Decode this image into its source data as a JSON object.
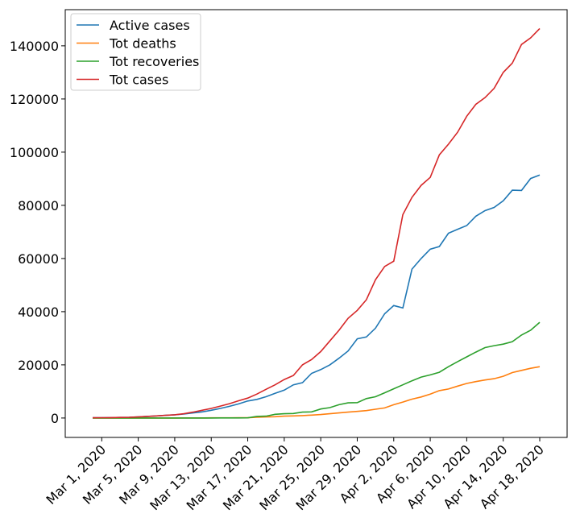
{
  "chart_data": {
    "type": "line",
    "x": [
      "2020-02-29",
      "2020-03-01",
      "2020-03-02",
      "2020-03-03",
      "2020-03-04",
      "2020-03-05",
      "2020-03-06",
      "2020-03-07",
      "2020-03-08",
      "2020-03-09",
      "2020-03-10",
      "2020-03-11",
      "2020-03-12",
      "2020-03-13",
      "2020-03-14",
      "2020-03-15",
      "2020-03-16",
      "2020-03-17",
      "2020-03-18",
      "2020-03-19",
      "2020-03-20",
      "2020-03-21",
      "2020-03-22",
      "2020-03-23",
      "2020-03-24",
      "2020-03-25",
      "2020-03-26",
      "2020-03-27",
      "2020-03-28",
      "2020-03-29",
      "2020-03-30",
      "2020-03-31",
      "2020-04-01",
      "2020-04-02",
      "2020-04-03",
      "2020-04-04",
      "2020-04-05",
      "2020-04-06",
      "2020-04-07",
      "2020-04-08",
      "2020-04-09",
      "2020-04-10",
      "2020-04-11",
      "2020-04-12",
      "2020-04-13",
      "2020-04-14",
      "2020-04-15",
      "2020-04-16",
      "2020-04-17",
      "2020-04-18"
    ],
    "series": [
      {
        "name": "Active cases",
        "color": "#1f77b4",
        "values": [
          80,
          130,
          160,
          200,
          260,
          400,
          600,
          800,
          1000,
          1200,
          1500,
          1900,
          2300,
          2900,
          3600,
          4400,
          5300,
          6400,
          7000,
          8000,
          9300,
          10500,
          12500,
          13300,
          16800,
          18200,
          20000,
          22500,
          25200,
          29800,
          30500,
          33800,
          39200,
          42300,
          41400,
          56000,
          60000,
          63500,
          64500,
          69500,
          71000,
          72400,
          75900,
          78000,
          79200,
          81700,
          85700,
          85600,
          90100,
          91400
        ]
      },
      {
        "name": "Tot deaths",
        "color": "#ff7f0e",
        "values": [
          0,
          0,
          0,
          0,
          0,
          0,
          0,
          0,
          0,
          10,
          20,
          30,
          40,
          50,
          60,
          70,
          80,
          100,
          300,
          400,
          500,
          700,
          800,
          900,
          1100,
          1300,
          1600,
          1900,
          2200,
          2500,
          2800,
          3300,
          3800,
          5000,
          6000,
          7100,
          7900,
          9000,
          10300,
          10900,
          12000,
          13000,
          13700,
          14300,
          14800,
          15700,
          17100,
          17900,
          18700,
          19300
        ]
      },
      {
        "name": "Tot recoveries",
        "color": "#2ca02c",
        "values": [
          0,
          0,
          0,
          0,
          0,
          0,
          0,
          0,
          0,
          0,
          0,
          0,
          0,
          10,
          20,
          30,
          40,
          50,
          600,
          700,
          1400,
          1600,
          1700,
          2200,
          2300,
          3400,
          3900,
          5000,
          5700,
          5800,
          7300,
          8000,
          9500,
          11000,
          12500,
          14000,
          15400,
          16200,
          17200,
          19300,
          21200,
          23000,
          24800,
          26500,
          27200,
          27800,
          28700,
          31200,
          33000,
          36000
        ]
      },
      {
        "name": "Tot cases",
        "color": "#d62728",
        "values": [
          80,
          130,
          160,
          200,
          260,
          400,
          600,
          800,
          1000,
          1200,
          1600,
          2200,
          2900,
          3600,
          4500,
          5400,
          6500,
          7500,
          9000,
          10800,
          12500,
          14500,
          16000,
          20000,
          22000,
          25000,
          29000,
          33000,
          37500,
          40500,
          44500,
          52000,
          57000,
          59000,
          76500,
          83000,
          87500,
          90500,
          99000,
          103000,
          107500,
          113500,
          118000,
          120500,
          124000,
          130000,
          133500,
          140500,
          143000,
          146500
        ]
      }
    ],
    "xlim": [
      "2020-02-26",
      "2020-04-21"
    ],
    "xticks": [
      {
        "value": "2020-03-01",
        "label": "Mar 1, 2020"
      },
      {
        "value": "2020-03-05",
        "label": "Mar 5, 2020"
      },
      {
        "value": "2020-03-09",
        "label": "Mar 9, 2020"
      },
      {
        "value": "2020-03-13",
        "label": "Mar 13, 2020"
      },
      {
        "value": "2020-03-17",
        "label": "Mar 17, 2020"
      },
      {
        "value": "2020-03-21",
        "label": "Mar 21, 2020"
      },
      {
        "value": "2020-03-25",
        "label": "Mar 25, 2020"
      },
      {
        "value": "2020-03-29",
        "label": "Mar 29, 2020"
      },
      {
        "value": "2020-04-02",
        "label": "Apr 2, 2020"
      },
      {
        "value": "2020-04-06",
        "label": "Apr 6, 2020"
      },
      {
        "value": "2020-04-10",
        "label": "Apr 10, 2020"
      },
      {
        "value": "2020-04-14",
        "label": "Apr 14, 2020"
      },
      {
        "value": "2020-04-18",
        "label": "Apr 18, 2020"
      }
    ],
    "ylim": [
      -7300,
      153600
    ],
    "yticks": [
      0,
      20000,
      40000,
      60000,
      80000,
      100000,
      120000,
      140000
    ],
    "legend": "upper left"
  }
}
